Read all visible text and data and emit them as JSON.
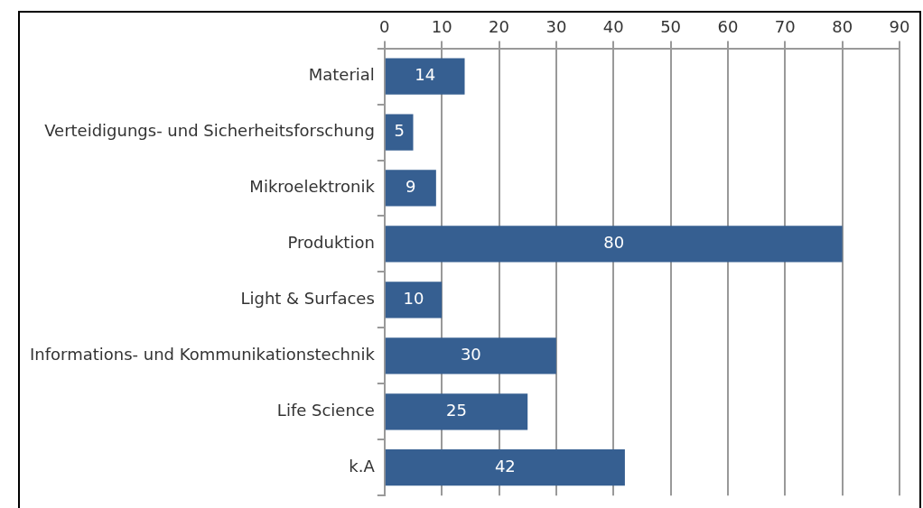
{
  "chart_data": {
    "type": "bar",
    "orientation": "horizontal",
    "categories": [
      "Material",
      "Verteidigungs- und Sicherheitsforschung",
      "Mikroelektronik",
      "Produktion",
      "Light & Surfaces",
      "Informations- und Kommunikationstechnik",
      "Life Science",
      "k.A"
    ],
    "values": [
      14,
      5,
      9,
      80,
      10,
      30,
      25,
      42
    ],
    "color": "#365f91",
    "xlim": [
      0,
      90
    ],
    "xticks": [
      0,
      10,
      20,
      30,
      40,
      50,
      60,
      70,
      80,
      90
    ],
    "grid": "x",
    "data_labels": true,
    "legend": false
  }
}
